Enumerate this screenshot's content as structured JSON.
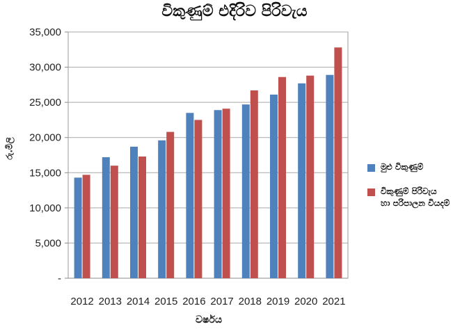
{
  "chart_data": {
    "type": "bar",
    "title": "විකුණුම් එදිරිව පිරිවැය",
    "xlabel": "වර්ෂය",
    "ylabel": "රු.මිලි",
    "categories": [
      "2012",
      "2013",
      "2014",
      "2015",
      "2016",
      "2017",
      "2018",
      "2019",
      "2020",
      "2021"
    ],
    "series": [
      {
        "name": "මුළු විකුණුම්",
        "color": "#4f81bd",
        "values": [
          14300,
          17200,
          18700,
          19600,
          23500,
          23900,
          24700,
          26100,
          27700,
          28900
        ]
      },
      {
        "name": "විකුණුම් පිරිවැය\nහා පරිපාලන වියදම්",
        "color": "#c0504d",
        "values": [
          14700,
          16000,
          17300,
          20800,
          22500,
          24100,
          26700,
          28600,
          28800,
          32800
        ]
      }
    ],
    "ylim": [
      0,
      35000
    ],
    "yticks": [
      "-",
      "5,000",
      "10,000",
      "15,000",
      "20,000",
      "25,000",
      "30,000",
      "35,000"
    ],
    "grid": true,
    "legend_position": "right"
  }
}
